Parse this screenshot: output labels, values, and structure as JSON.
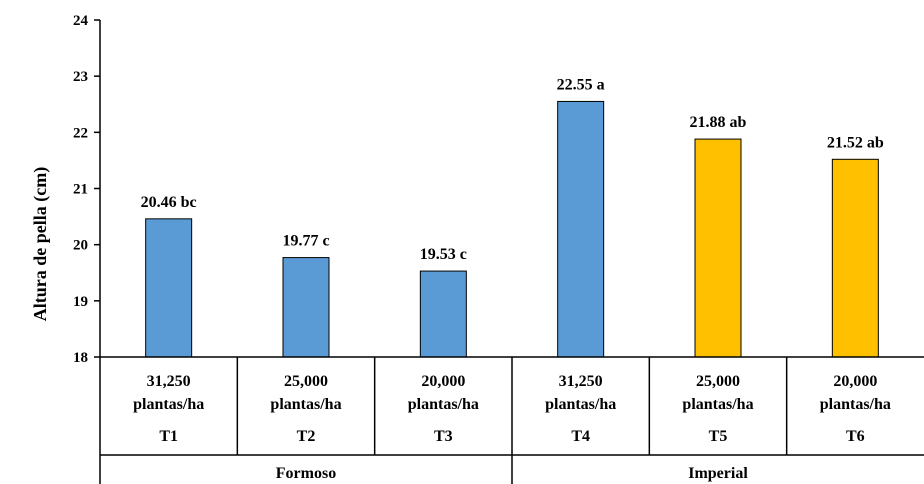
{
  "chart_data": {
    "type": "bar",
    "ylabel": "Altura de pella (cm)",
    "xlabel": "",
    "ylim": [
      18,
      24
    ],
    "yticks": [
      "18",
      "19",
      "20",
      "21",
      "22",
      "23",
      "24"
    ],
    "grid": false,
    "groups": [
      "Formoso",
      "Imperial"
    ],
    "categories": [
      {
        "density_value": "31,250",
        "density_unit": "plantas/ha",
        "treatment": "T1",
        "group": "Formoso",
        "value": 20.46,
        "label": "20.46 bc",
        "color": "#5B9BD5"
      },
      {
        "density_value": "25,000",
        "density_unit": "plantas/ha",
        "treatment": "T2",
        "group": "Formoso",
        "value": 19.77,
        "label": "19.77 c",
        "color": "#5B9BD5"
      },
      {
        "density_value": "20,000",
        "density_unit": "plantas/ha",
        "treatment": "T3",
        "group": "Formoso",
        "value": 19.53,
        "label": "19.53 c",
        "color": "#5B9BD5"
      },
      {
        "density_value": "31,250",
        "density_unit": "plantas/ha",
        "treatment": "T4",
        "group": "Imperial",
        "value": 22.55,
        "label": "22.55 a",
        "color": "#5B9BD5"
      },
      {
        "density_value": "25,000",
        "density_unit": "plantas/ha",
        "treatment": "T5",
        "group": "Imperial",
        "value": 21.88,
        "label": "21.88 ab",
        "color": "#FFC000"
      },
      {
        "density_value": "20,000",
        "density_unit": "plantas/ha",
        "treatment": "T6",
        "group": "Imperial",
        "value": 21.52,
        "label": "21.52 ab",
        "color": "#FFC000"
      }
    ]
  }
}
